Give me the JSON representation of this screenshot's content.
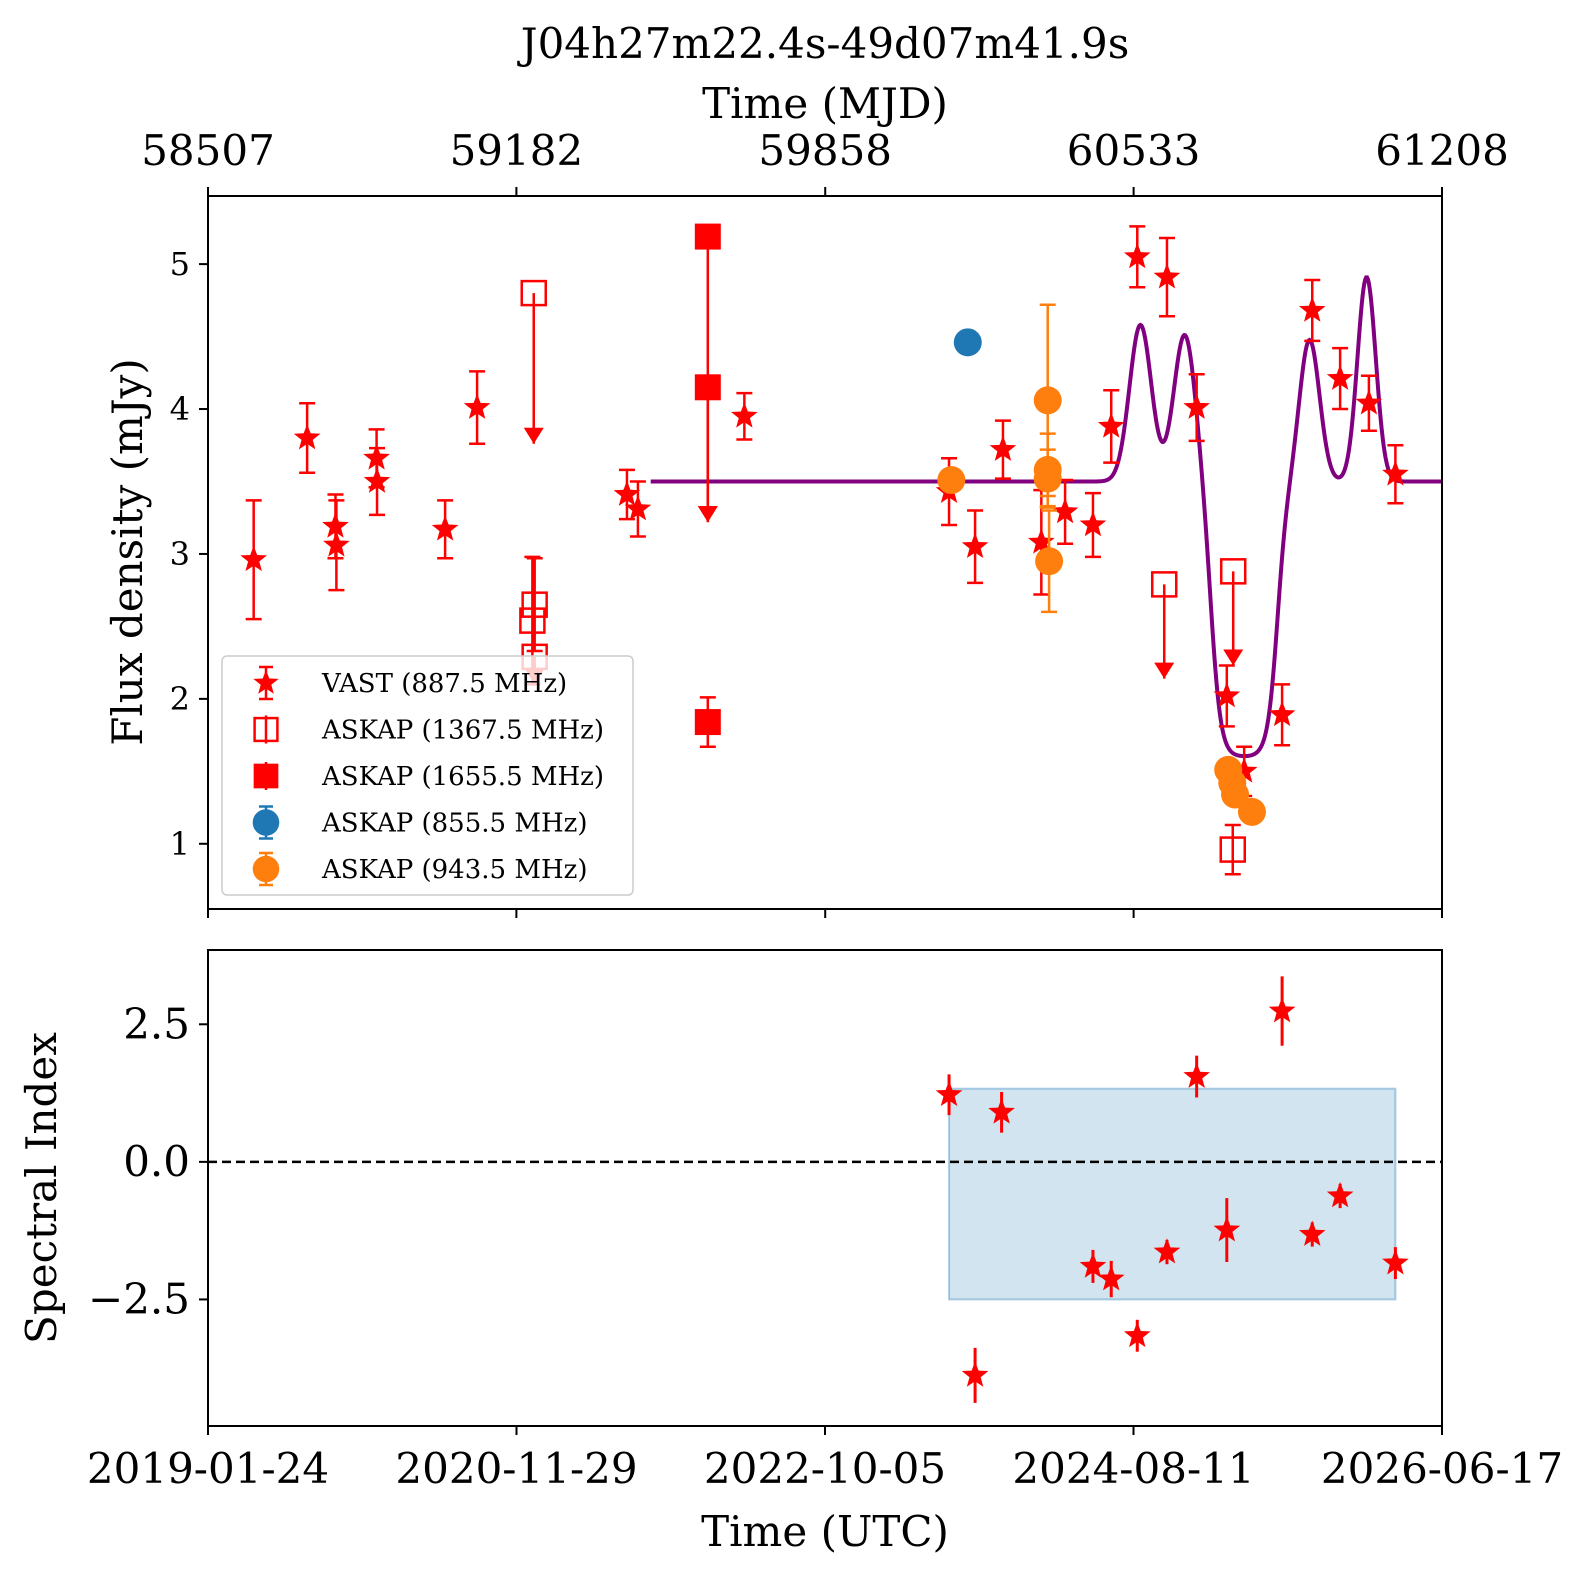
{
  "chart_data": {
    "title": "J04h27m22.4s-49d07m41.9s",
    "top_axis": {
      "label": "Time (MJD)",
      "ticks": [
        "58507",
        "59182",
        "59858",
        "60533",
        "61208"
      ]
    },
    "x_axis": {
      "label": "Time (UTC)",
      "ticks": [
        "2019-01-24",
        "2020-11-29",
        "2022-10-05",
        "2024-08-11",
        "2026-06-17"
      ],
      "range_mjd": [
        58507,
        61208
      ]
    },
    "panels": [
      {
        "type": "scatter",
        "ylabel": "Flux density (mJy)",
        "ylim": [
          0.55,
          5.47
        ],
        "yticks": [
          1,
          2,
          3,
          4,
          5
        ],
        "legend": {
          "placement": "lower-left",
          "entries": [
            {
              "label": "VAST (887.5 MHz)",
              "marker": "star",
              "color": "#ff0000"
            },
            {
              "label": "ASKAP (1367.5 MHz)",
              "marker": "open-square",
              "color": "#ff0000"
            },
            {
              "label": "ASKAP (1655.5 MHz)",
              "marker": "filled-square",
              "color": "#ff0000"
            },
            {
              "label": "ASKAP (855.5 MHz)",
              "marker": "circle",
              "color": "#1f77b4"
            },
            {
              "label": "ASKAP (943.5 MHz)",
              "marker": "circle",
              "color": "#ff7f0e"
            }
          ]
        },
        "series": [
          {
            "name": "VAST (887.5 MHz)",
            "marker": "star",
            "color": "#ff0000",
            "points": [
              {
                "x": 58607,
                "y": 2.96,
                "err": 0.41
              },
              {
                "x": 58724,
                "y": 3.8,
                "err": 0.24
              },
              {
                "x": 58786,
                "y": 3.19,
                "err": 0.22
              },
              {
                "x": 58788,
                "y": 3.06,
                "err": 0.31
              },
              {
                "x": 58876,
                "y": 3.66,
                "err": 0.2
              },
              {
                "x": 58877,
                "y": 3.5,
                "err": 0.23
              },
              {
                "x": 59026,
                "y": 3.17,
                "err": 0.2
              },
              {
                "x": 59096,
                "y": 4.01,
                "err": 0.25
              },
              {
                "x": 59424,
                "y": 3.41,
                "err": 0.17
              },
              {
                "x": 59448,
                "y": 3.31,
                "err": 0.19
              },
              {
                "x": 59681,
                "y": 3.95,
                "err": 0.16
              },
              {
                "x": 60129,
                "y": 3.43,
                "err": 0.23
              },
              {
                "x": 60186,
                "y": 3.05,
                "err": 0.25
              },
              {
                "x": 60247,
                "y": 3.72,
                "err": 0.2
              },
              {
                "x": 60331,
                "y": 3.08,
                "err": 0.36
              },
              {
                "x": 60383,
                "y": 3.29,
                "err": 0.22
              },
              {
                "x": 60444,
                "y": 3.2,
                "err": 0.22
              },
              {
                "x": 60484,
                "y": 3.88,
                "err": 0.25
              },
              {
                "x": 60541,
                "y": 5.05,
                "err": 0.21
              },
              {
                "x": 60606,
                "y": 4.91,
                "err": 0.27
              },
              {
                "x": 60671,
                "y": 4.01,
                "err": 0.23
              },
              {
                "x": 60737,
                "y": 2.02,
                "err": 0.21
              },
              {
                "x": 60775,
                "y": 1.5,
                "err": 0.17
              },
              {
                "x": 60858,
                "y": 1.89,
                "err": 0.21
              },
              {
                "x": 60924,
                "y": 4.68,
                "err": 0.21
              },
              {
                "x": 60985,
                "y": 4.21,
                "err": 0.21
              },
              {
                "x": 61048,
                "y": 4.04,
                "err": 0.19
              },
              {
                "x": 61106,
                "y": 3.55,
                "err": 0.2
              }
            ]
          },
          {
            "name": "ASKAP (1367.5 MHz)",
            "marker": "open-square",
            "color": "#ff0000",
            "points": [
              {
                "x": 59220,
                "y": 4.8,
                "upper_limit": true,
                "arrow_to": 3.76
              },
              {
                "x": 59217,
                "y": 2.54,
                "err": 0.44
              },
              {
                "x": 59222,
                "y": 2.65,
                "err": 0.32
              },
              {
                "x": 59222,
                "y": 2.29,
                "upper_limit": true,
                "arrow_to": 2.1
              },
              {
                "x": 60600,
                "y": 2.79,
                "upper_limit": true,
                "arrow_to": 2.14
              },
              {
                "x": 60751,
                "y": 2.88,
                "upper_limit": true,
                "arrow_to": 2.23
              },
              {
                "x": 60750,
                "y": 0.96,
                "err": 0.17
              }
            ]
          },
          {
            "name": "ASKAP (1655.5 MHz)",
            "marker": "filled-square",
            "color": "#ff0000",
            "points": [
              {
                "x": 59601,
                "y": 5.19,
                "upper_limit": true,
                "arrow_to": 3.22
              },
              {
                "x": 59601,
                "y": 4.15,
                "upper_limit": true,
                "arrow_to": 3.22
              },
              {
                "x": 59601,
                "y": 1.84,
                "err": 0.17
              }
            ]
          },
          {
            "name": "ASKAP (855.5 MHz)",
            "marker": "circle",
            "color": "#1f77b4",
            "points": [
              {
                "x": 60170,
                "y": 4.46,
                "err": 0.07
              }
            ]
          },
          {
            "name": "ASKAP (943.5 MHz)",
            "marker": "circle",
            "color": "#ff7f0e",
            "points": [
              {
                "x": 60134,
                "y": 3.51,
                "err": 0.07
              },
              {
                "x": 60345,
                "y": 4.06,
                "err": 0.66
              },
              {
                "x": 60345,
                "y": 3.58,
                "err": 0.25
              },
              {
                "x": 60345,
                "y": 3.52,
                "err": 0.2
              },
              {
                "x": 60348,
                "y": 2.95,
                "err": 0.35
              },
              {
                "x": 60740,
                "y": 1.51,
                "err": 0.05
              },
              {
                "x": 60749,
                "y": 1.42,
                "err": 0.05
              },
              {
                "x": 60755,
                "y": 1.34,
                "err": 0.05
              },
              {
                "x": 60792,
                "y": 1.22,
                "err": 0.05
              }
            ]
          }
        ],
        "model_curve": {
          "color": "#800080",
          "baseline": 3.5,
          "x_start": 59476,
          "x_end": 61208,
          "gaussians": [
            {
              "center": 60548,
              "amplitude": 1.08,
              "sigma": 24
            },
            {
              "center": 60645,
              "amplitude": 1.02,
              "sigma": 24
            },
            {
              "center": 60918,
              "amplitude": 0.98,
              "sigma": 22
            },
            {
              "center": 61043,
              "amplitude": 1.41,
              "sigma": 20
            }
          ],
          "dip": {
            "start": 60703,
            "end": 60848,
            "depth": 1.9,
            "edge_width": 11
          }
        }
      },
      {
        "type": "scatter",
        "ylabel": "Spectral Index",
        "ylim": [
          -4.8,
          3.85
        ],
        "yticks": [
          2.5,
          0.0,
          -2.5
        ],
        "ytick_labels": [
          "2.5",
          "0.0",
          "−2.5"
        ],
        "reference_line": {
          "y": 0.0,
          "style": "dashed",
          "color": "#000000"
        },
        "band": {
          "x0": 60129,
          "x1": 61106,
          "y0": -2.5,
          "y1": 1.33,
          "color": "#1f77b4"
        },
        "series": [
          {
            "name": "",
            "marker": "star",
            "color": "#ff0000",
            "points": [
              {
                "x": 60129,
                "y": 1.22,
                "err": 0.37
              },
              {
                "x": 60186,
                "y": -3.88,
                "err": 0.5
              },
              {
                "x": 60244,
                "y": 0.9,
                "err": 0.37
              },
              {
                "x": 60444,
                "y": -1.9,
                "err": 0.3
              },
              {
                "x": 60484,
                "y": -2.13,
                "err": 0.33
              },
              {
                "x": 60541,
                "y": -3.16,
                "err": 0.29
              },
              {
                "x": 60606,
                "y": -1.64,
                "err": 0.22
              },
              {
                "x": 60671,
                "y": 1.55,
                "err": 0.38
              },
              {
                "x": 60737,
                "y": -1.24,
                "err": 0.58
              },
              {
                "x": 60858,
                "y": 2.74,
                "err": 0.63
              },
              {
                "x": 60924,
                "y": -1.32,
                "err": 0.22
              },
              {
                "x": 60985,
                "y": -0.62,
                "err": 0.22
              },
              {
                "x": 61106,
                "y": -1.84,
                "err": 0.29
              }
            ]
          }
        ]
      }
    ]
  }
}
